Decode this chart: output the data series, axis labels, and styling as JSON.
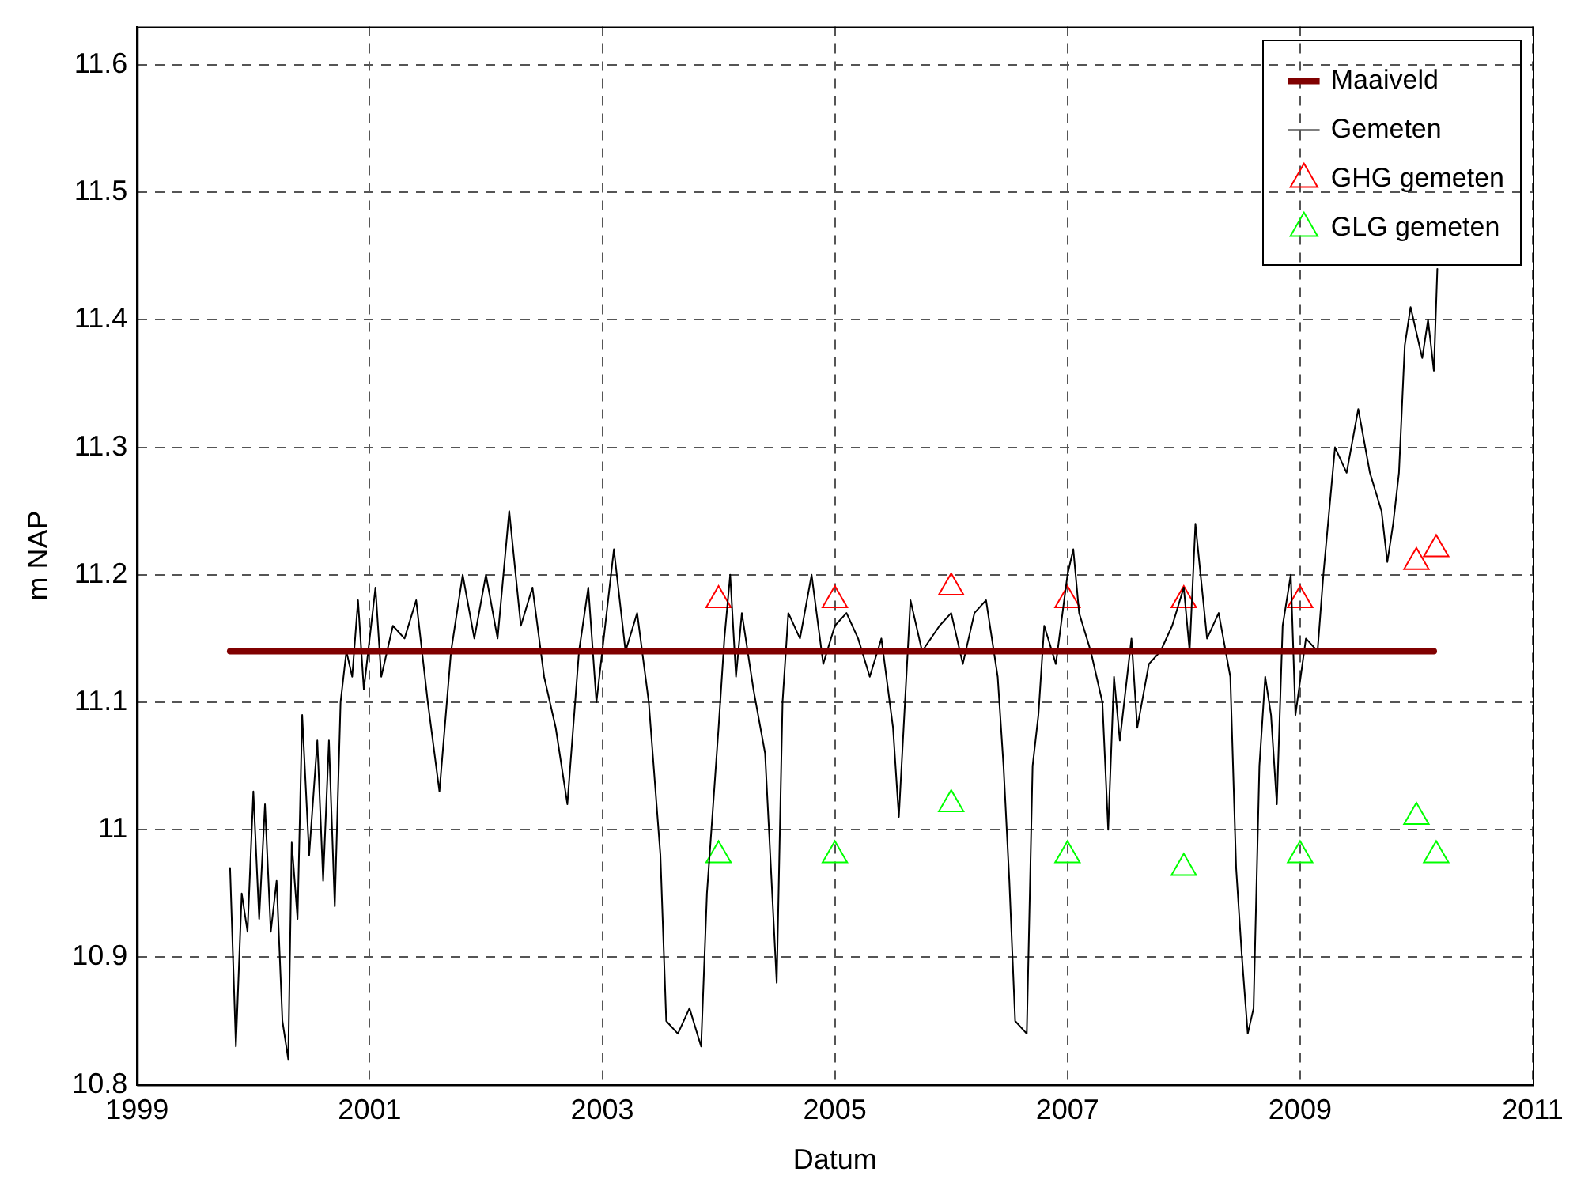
{
  "chart_data": {
    "type": "line",
    "xlabel": "Datum",
    "ylabel": "m NAP",
    "grid": true,
    "legend": "top right",
    "xlim": [
      1999,
      2011
    ],
    "xticks": [
      1999,
      2001,
      2003,
      2005,
      2007,
      2009,
      2011
    ],
    "ylim": [
      10.8,
      11.63
    ],
    "yticks": [
      10.8,
      10.9,
      11,
      11.1,
      11.2,
      11.3,
      11.4,
      11.5,
      11.6
    ],
    "series": [
      {
        "name": "Maaiveld",
        "type": "line",
        "color": "#800000",
        "marker": "none",
        "x": [
          1999.8,
          2010.15
        ],
        "values": [
          11.14,
          11.14
        ]
      },
      {
        "name": "Gemeten",
        "type": "line",
        "color": "#000000",
        "marker": "none",
        "x": [
          1999.8,
          1999.85,
          1999.9,
          1999.95,
          2000.0,
          2000.05,
          2000.1,
          2000.15,
          2000.2,
          2000.25,
          2000.3,
          2000.33,
          2000.38,
          2000.42,
          2000.48,
          2000.55,
          2000.6,
          2000.65,
          2000.7,
          2000.75,
          2000.8,
          2000.85,
          2000.9,
          2000.95,
          2001.05,
          2001.1,
          2001.2,
          2001.3,
          2001.4,
          2001.5,
          2001.6,
          2001.7,
          2001.8,
          2001.9,
          2002.0,
          2002.1,
          2002.2,
          2002.3,
          2002.4,
          2002.5,
          2002.6,
          2002.7,
          2002.8,
          2002.88,
          2002.95,
          2003.1,
          2003.2,
          2003.3,
          2003.4,
          2003.5,
          2003.55,
          2003.65,
          2003.75,
          2003.85,
          2003.9,
          2004.0,
          2004.05,
          2004.1,
          2004.15,
          2004.2,
          2004.3,
          2004.4,
          2004.45,
          2004.5,
          2004.55,
          2004.6,
          2004.7,
          2004.8,
          2004.9,
          2005.0,
          2005.1,
          2005.2,
          2005.3,
          2005.4,
          2005.5,
          2005.55,
          2005.65,
          2005.75,
          2005.9,
          2006.0,
          2006.1,
          2006.2,
          2006.3,
          2006.4,
          2006.45,
          2006.5,
          2006.55,
          2006.65,
          2006.7,
          2006.75,
          2006.8,
          2006.9,
          2007.0,
          2007.05,
          2007.1,
          2007.2,
          2007.3,
          2007.35,
          2007.4,
          2007.45,
          2007.55,
          2007.6,
          2007.7,
          2007.8,
          2007.9,
          2008.0,
          2008.05,
          2008.1,
          2008.2,
          2008.3,
          2008.4,
          2008.45,
          2008.5,
          2008.55,
          2008.6,
          2008.65,
          2008.7,
          2008.75,
          2008.8,
          2008.85,
          2008.92,
          2008.96,
          2009.05,
          2009.15,
          2009.2,
          2009.25,
          2009.3,
          2009.4,
          2009.5,
          2009.6,
          2009.7,
          2009.75,
          2009.8,
          2009.85,
          2009.9,
          2009.95,
          2010.0,
          2010.05,
          2010.1,
          2010.15,
          2010.18
        ],
        "values": [
          10.97,
          10.83,
          10.95,
          10.92,
          11.03,
          10.93,
          11.02,
          10.92,
          10.96,
          10.85,
          10.82,
          10.99,
          10.93,
          11.09,
          10.98,
          11.07,
          10.96,
          11.07,
          10.94,
          11.1,
          11.14,
          11.12,
          11.18,
          11.11,
          11.19,
          11.12,
          11.16,
          11.15,
          11.18,
          11.1,
          11.03,
          11.14,
          11.2,
          11.15,
          11.2,
          11.15,
          11.25,
          11.16,
          11.19,
          11.12,
          11.08,
          11.02,
          11.14,
          11.19,
          11.1,
          11.22,
          11.14,
          11.17,
          11.1,
          10.98,
          10.85,
          10.84,
          10.86,
          10.83,
          10.95,
          11.08,
          11.15,
          11.2,
          11.12,
          11.17,
          11.11,
          11.06,
          10.97,
          10.88,
          11.1,
          11.17,
          11.15,
          11.2,
          11.13,
          11.16,
          11.17,
          11.15,
          11.12,
          11.15,
          11.08,
          11.01,
          11.18,
          11.14,
          11.16,
          11.17,
          11.13,
          11.17,
          11.18,
          11.12,
          11.05,
          10.96,
          10.85,
          10.84,
          11.05,
          11.09,
          11.16,
          11.13,
          11.2,
          11.22,
          11.17,
          11.14,
          11.1,
          11.0,
          11.12,
          11.07,
          11.15,
          11.08,
          11.13,
          11.14,
          11.16,
          11.19,
          11.14,
          11.24,
          11.15,
          11.17,
          11.12,
          10.97,
          10.9,
          10.84,
          10.86,
          11.05,
          11.12,
          11.09,
          11.02,
          11.16,
          11.2,
          11.09,
          11.15,
          11.14,
          11.2,
          11.25,
          11.3,
          11.28,
          11.33,
          11.28,
          11.25,
          11.21,
          11.24,
          11.28,
          11.38,
          11.41,
          11.39,
          11.37,
          11.4,
          11.36,
          11.44
        ]
      },
      {
        "name": "GHG gemeten",
        "type": "scatter",
        "color": "#ff0000",
        "marker": "triangle",
        "x": [
          2004,
          2005,
          2006,
          2007,
          2008,
          2009,
          2010,
          2010.17
        ],
        "values": [
          11.18,
          11.18,
          11.19,
          11.18,
          11.18,
          11.18,
          11.21,
          11.22
        ]
      },
      {
        "name": "GLG gemeten",
        "type": "scatter",
        "color": "#00ff00",
        "marker": "triangle",
        "x": [
          2004,
          2005,
          2006,
          2007,
          2008,
          2009,
          2010,
          2010.17
        ],
        "values": [
          10.98,
          10.98,
          11.02,
          10.98,
          10.97,
          10.98,
          11.01,
          10.98
        ]
      }
    ]
  }
}
